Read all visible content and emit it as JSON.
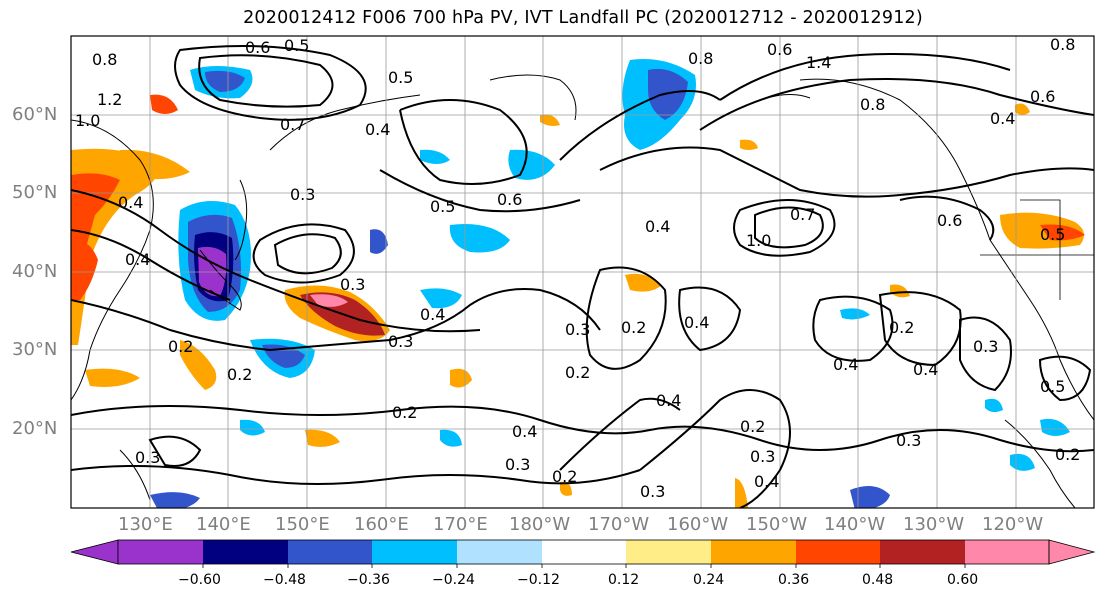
{
  "title": "2020012412 F006 700 hPa PV, IVT Landfall PC (2020012712 - 2020012912)",
  "lat_labels": [
    "60°N",
    "50°N",
    "40°N",
    "30°N",
    "20°N"
  ],
  "lon_labels": [
    "130°E",
    "140°E",
    "150°E",
    "160°E",
    "170°E",
    "180°W",
    "170°W",
    "160°W",
    "150°W",
    "140°W",
    "130°W",
    "120°W"
  ],
  "colorbar": {
    "colors": [
      "#9933cc",
      "#000080",
      "#3355cc",
      "#00bfff",
      "#b0e2ff",
      "#ffffff",
      "#ffee88",
      "#ffa500",
      "#ff4500",
      "#b22222",
      "#ff88aa"
    ],
    "ticks": [
      "−0.60",
      "−0.48",
      "−0.36",
      "−0.24",
      "−0.12",
      "0.12",
      "0.24",
      "0.36",
      "0.48",
      "0.60"
    ]
  },
  "contour_labels": [
    "0.6",
    "0.5",
    "0.8",
    "0.8",
    "0.6",
    "1.4",
    "1.2",
    "1.0",
    "0.8",
    "0.7",
    "0.4",
    "0.5",
    "0.3",
    "0.5",
    "0.6",
    "0.4",
    "0.4",
    "1.0",
    "0.7",
    "0.6",
    "0.4",
    "0.3",
    "0.3",
    "0.4",
    "0.2",
    "0.3",
    "0.2",
    "0.4",
    "0.2",
    "0.2",
    "0.4",
    "0.4",
    "0.2",
    "0.3",
    "0.2",
    "0.2",
    "0.4",
    "0.3",
    "0.3",
    "0.3",
    "0.4",
    "0.3",
    "0.2",
    "0.5",
    "0.2",
    "0.4",
    "0.3",
    "0.4",
    "0.8",
    "0.6",
    "0.5"
  ]
}
